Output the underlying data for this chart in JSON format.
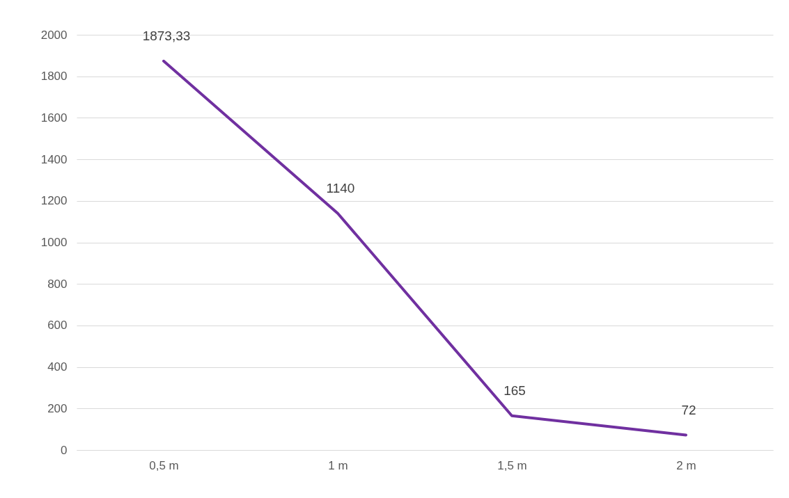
{
  "chart_data": {
    "type": "line",
    "categories": [
      "0,5 m",
      "1 m",
      "1,5 m",
      "2 m"
    ],
    "series": [
      {
        "color": "#7030a0",
        "values": [
          1873.33,
          1140,
          165,
          72
        ],
        "value_labels": [
          "1873,33",
          "1140",
          "165",
          "72"
        ]
      }
    ],
    "ylim": [
      0,
      2000
    ],
    "yticks": [
      0,
      200,
      400,
      600,
      800,
      1000,
      1200,
      1400,
      1600,
      1800,
      2000
    ],
    "grid": "y",
    "line_style": "solid"
  }
}
